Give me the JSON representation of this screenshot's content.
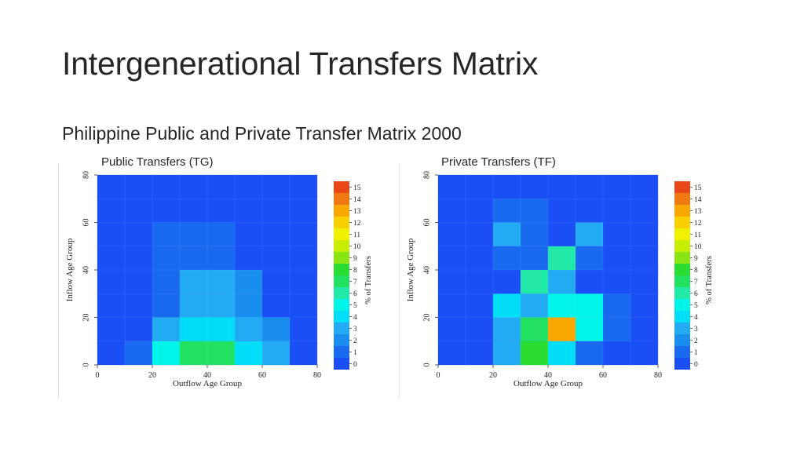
{
  "slide": {
    "title": "Intergenerational Transfers Matrix",
    "subtitle": "Philippine Public and Private Transfer Matrix 2000"
  },
  "colors": {
    "scale": [
      "#1a4ff5",
      "#1a6af0",
      "#1a8eee",
      "#22aaf2",
      "#00ddf6",
      "#00f4e8",
      "#22e8a8",
      "#22e060",
      "#2add30",
      "#88e414",
      "#c8ee06",
      "#f0f000",
      "#fad000",
      "#f8a800",
      "#f07810",
      "#e84818"
    ]
  },
  "chart_data": [
    {
      "type": "heatmap",
      "title": "Public Transfers (TG)",
      "xlabel": "Outflow Age Group",
      "ylabel": "Inflow Age Group",
      "colorbar_label": "% of Transfers",
      "xlim": [
        0,
        80
      ],
      "ylim": [
        0,
        80
      ],
      "x_ticks": [
        0,
        20,
        40,
        60,
        80
      ],
      "y_ticks": [
        0,
        20,
        40,
        60,
        80
      ],
      "colorbar_ticks": [
        0,
        1,
        2,
        3,
        4,
        5,
        6,
        7,
        8,
        9,
        10,
        11,
        12,
        13,
        14,
        15
      ],
      "cell_size": 10,
      "y_rows": [
        5,
        15,
        25,
        35,
        45,
        55,
        65,
        75
      ],
      "x_cols": [
        5,
        15,
        25,
        35,
        45,
        55,
        65,
        75
      ],
      "values": [
        [
          0,
          1,
          5,
          7,
          7,
          4,
          3,
          0
        ],
        [
          0,
          0,
          3,
          4,
          4,
          3,
          2,
          0
        ],
        [
          0,
          0,
          1,
          3,
          3,
          2,
          0,
          0
        ],
        [
          0,
          0,
          1,
          3,
          3,
          2,
          0,
          0
        ],
        [
          0,
          0,
          1,
          1,
          1,
          0,
          0,
          0
        ],
        [
          0,
          0,
          1,
          1,
          1,
          0,
          0,
          0
        ],
        [
          0,
          0,
          0,
          0,
          0,
          0,
          0,
          0
        ],
        [
          0,
          0,
          0,
          0,
          0,
          0,
          0,
          0
        ]
      ]
    },
    {
      "type": "heatmap",
      "title": "Private Transfers (TF)",
      "xlabel": "Outflow Age Group",
      "ylabel": "Inflow Age Group",
      "colorbar_label": "% of Transfers",
      "xlim": [
        0,
        80
      ],
      "ylim": [
        0,
        80
      ],
      "x_ticks": [
        0,
        20,
        40,
        60,
        80
      ],
      "y_ticks": [
        0,
        20,
        40,
        60,
        80
      ],
      "colorbar_ticks": [
        0,
        1,
        2,
        3,
        4,
        5,
        6,
        7,
        8,
        9,
        10,
        11,
        12,
        13,
        14,
        15
      ],
      "cell_size": 10,
      "y_rows": [
        5,
        15,
        25,
        35,
        45,
        55,
        65,
        75
      ],
      "x_cols": [
        5,
        15,
        25,
        35,
        45,
        55,
        65,
        75
      ],
      "values": [
        [
          0,
          0,
          3,
          8,
          4,
          1,
          0,
          0
        ],
        [
          0,
          0,
          3,
          7,
          13,
          5,
          1,
          0
        ],
        [
          0,
          0,
          4,
          3,
          5,
          5,
          1,
          0
        ],
        [
          0,
          0,
          0,
          6,
          3,
          0,
          0,
          0
        ],
        [
          0,
          0,
          1,
          1,
          6,
          1,
          0,
          0
        ],
        [
          0,
          0,
          3,
          1,
          0,
          3,
          0,
          0
        ],
        [
          0,
          0,
          1,
          1,
          0,
          0,
          0,
          0
        ],
        [
          0,
          0,
          0,
          0,
          0,
          0,
          0,
          0
        ]
      ]
    }
  ]
}
